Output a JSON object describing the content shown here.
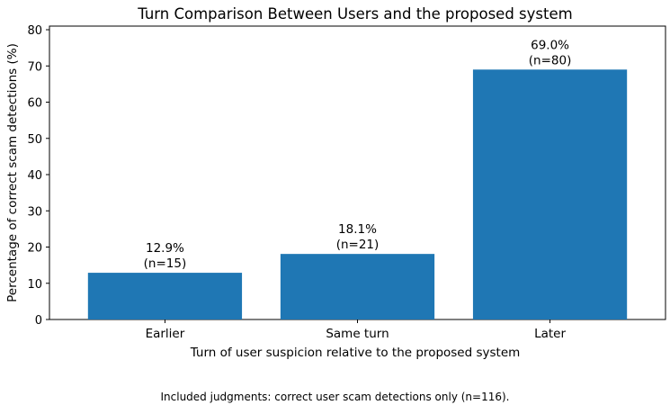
{
  "chart_data": {
    "type": "bar",
    "title": "Turn Comparison Between Users and the proposed system",
    "xlabel": "Turn of user suspicion relative to the proposed system",
    "ylabel": "Percentage of correct scam detections (%)",
    "categories": [
      "Earlier",
      "Same turn",
      "Later"
    ],
    "values": [
      12.9,
      18.1,
      69.0
    ],
    "counts": [
      15,
      21,
      80
    ],
    "value_labels": [
      "12.9%",
      "18.1%",
      "69.0%"
    ],
    "count_labels": [
      "(n=15)",
      "(n=21)",
      "(n=80)"
    ],
    "ylim": [
      0,
      81
    ],
    "yticks": [
      0,
      10,
      20,
      30,
      40,
      50,
      60,
      70,
      80
    ],
    "bar_color": "#1f77b4",
    "grid": false,
    "legend": "none"
  },
  "footnote": "Included judgments: correct user scam detections only (n=116)."
}
